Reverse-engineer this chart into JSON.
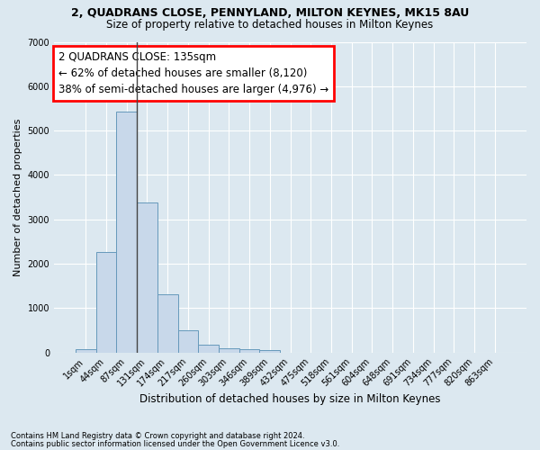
{
  "title": "2, QUADRANS CLOSE, PENNYLAND, MILTON KEYNES, MK15 8AU",
  "subtitle": "Size of property relative to detached houses in Milton Keynes",
  "xlabel": "Distribution of detached houses by size in Milton Keynes",
  "ylabel": "Number of detached properties",
  "footer_line1": "Contains HM Land Registry data © Crown copyright and database right 2024.",
  "footer_line2": "Contains public sector information licensed under the Open Government Licence v3.0.",
  "bar_labels": [
    "1sqm",
    "44sqm",
    "87sqm",
    "131sqm",
    "174sqm",
    "217sqm",
    "260sqm",
    "303sqm",
    "346sqm",
    "389sqm",
    "432sqm",
    "475sqm",
    "518sqm",
    "561sqm",
    "604sqm",
    "648sqm",
    "691sqm",
    "734sqm",
    "777sqm",
    "820sqm",
    "863sqm"
  ],
  "bar_values": [
    75,
    2270,
    5430,
    3370,
    1310,
    490,
    170,
    85,
    65,
    55,
    0,
    0,
    0,
    0,
    0,
    0,
    0,
    0,
    0,
    0,
    0
  ],
  "bar_color": "#c8d8ea",
  "bar_edge_color": "#6699bb",
  "bg_color": "#dce8f0",
  "grid_color": "#ffffff",
  "ylim": [
    0,
    7000
  ],
  "yticks": [
    0,
    1000,
    2000,
    3000,
    4000,
    5000,
    6000,
    7000
  ],
  "annotation_text": "2 QUADRANS CLOSE: 135sqm\n← 62% of detached houses are smaller (8,120)\n38% of semi-detached houses are larger (4,976) →",
  "vline_x": 2.5,
  "bar_width": 1.0
}
